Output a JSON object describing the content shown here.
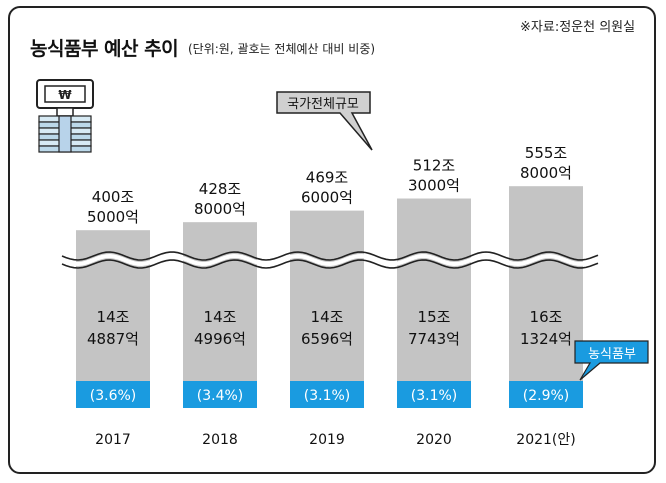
{
  "header": {
    "title": "농식품부 예산 추이",
    "unit": "(단위:원, 괄호는 전체예산 대비 비중)",
    "source": "※자료:정운천 의원실"
  },
  "icon": "money-stack-icon",
  "colors": {
    "bar": "#c4c4c4",
    "highlight": "#1a9be0",
    "frame": "#222222"
  },
  "callouts": {
    "total": "국가전체규모",
    "ministry": "농식품부"
  },
  "chart_data": {
    "type": "bar",
    "categories": [
      "2017",
      "2018",
      "2019",
      "2020",
      "2021(안)"
    ],
    "series": [
      {
        "name": "국가전체규모",
        "values_text": [
          [
            "400조",
            "5000억"
          ],
          [
            "428조",
            "8000억"
          ],
          [
            "469조",
            "6000억"
          ],
          [
            "512조",
            "3000억"
          ],
          [
            "555조",
            "8000억"
          ]
        ],
        "values": [
          400.5,
          428.8,
          469.6,
          512.3,
          555.8
        ]
      },
      {
        "name": "농식품부",
        "values_text": [
          [
            "14조",
            "4887억"
          ],
          [
            "14조",
            "4996억"
          ],
          [
            "14조",
            "6596억"
          ],
          [
            "15조",
            "7743억"
          ],
          [
            "16조",
            "1324억"
          ]
        ],
        "values": [
          14.4887,
          14.4996,
          14.6596,
          15.7743,
          16.1324
        ]
      }
    ],
    "share": [
      "(3.6%)",
      "(3.4%)",
      "(3.1%)",
      "(3.1%)",
      "(2.9%)"
    ],
    "unit_label": "조원"
  }
}
